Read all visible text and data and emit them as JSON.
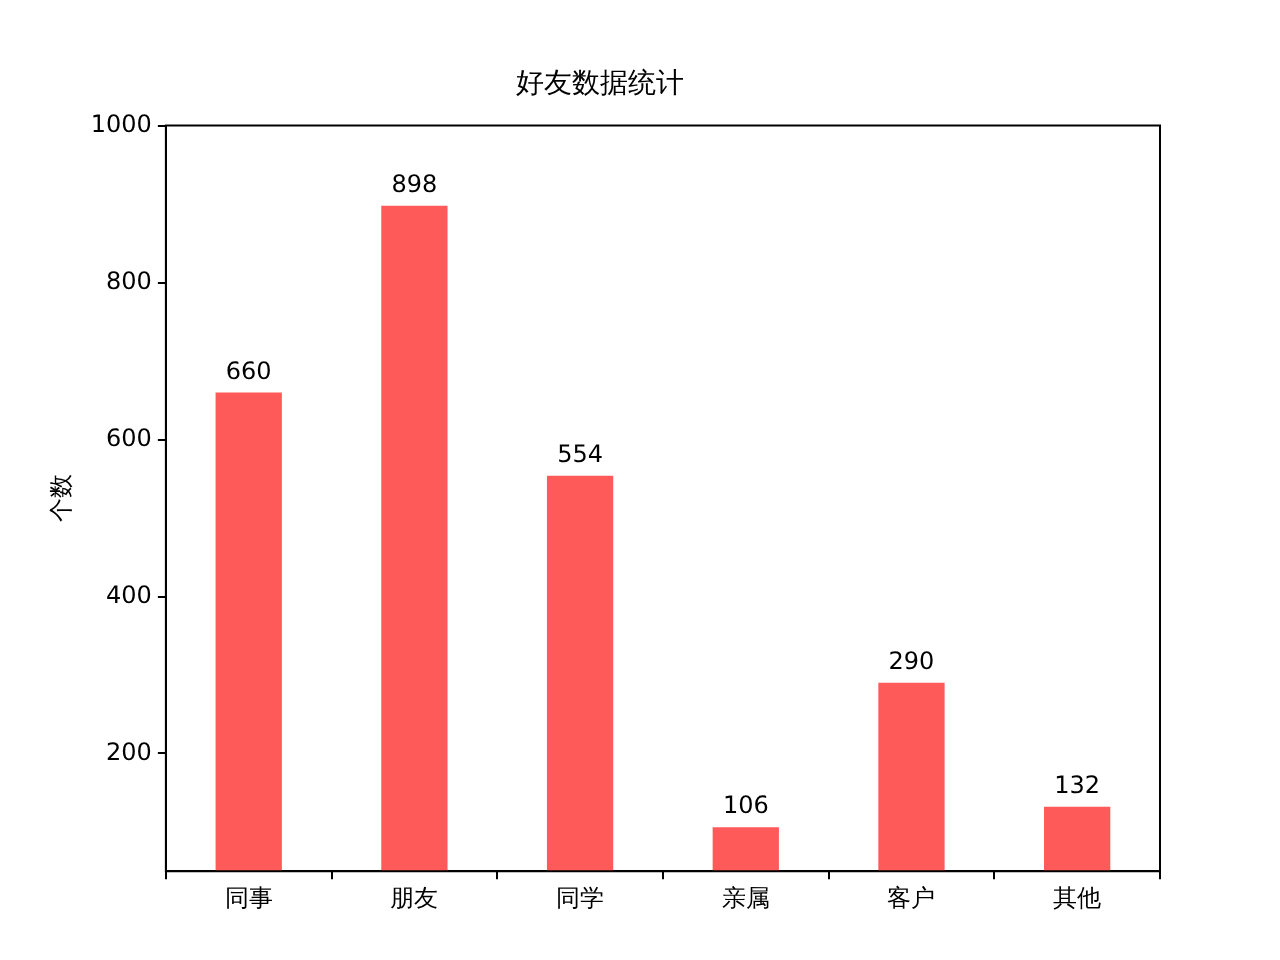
{
  "chart_data": {
    "type": "bar",
    "title": "好友数据统计",
    "ylabel": "个数",
    "categories": [
      "同事",
      "朋友",
      "同学",
      "亲属",
      "客户",
      "其他"
    ],
    "values": [
      660,
      898,
      554,
      106,
      290,
      132
    ],
    "color": "#ff5a5a",
    "ylim": [
      50,
      1000
    ],
    "yticks": [
      200,
      400,
      600,
      800,
      1000
    ],
    "grid": false,
    "data_labels": true,
    "legend": false
  }
}
